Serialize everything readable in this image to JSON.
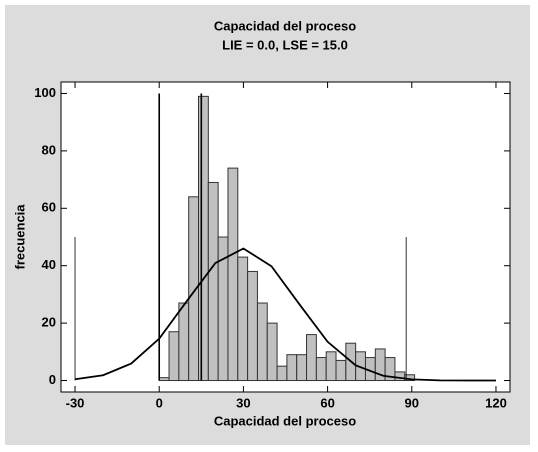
{
  "chart_data": {
    "type": "histogram",
    "title": "Capacidad del proceso",
    "subtitle": "LIE = 0.0, LSE = 15.0",
    "x_label": "Capacidad del proceso",
    "y_label": "frecuencia",
    "bins": [
      0,
      3.5,
      7,
      10.5,
      14,
      17.5,
      21,
      24.5,
      28,
      31.5,
      35,
      38.5,
      42,
      45.5,
      49,
      52.5,
      56,
      59.5,
      63,
      66.5,
      70,
      73.5,
      77,
      80.5,
      84,
      87.5,
      91
    ],
    "values": [
      1,
      17,
      27,
      64,
      99,
      69,
      50,
      74,
      43,
      38,
      27,
      20,
      5,
      9,
      9,
      16,
      8,
      10,
      7,
      13,
      10,
      8,
      11,
      8,
      3,
      2
    ],
    "color": "#c0c0c0",
    "curve": {
      "x": [
        -30,
        -20,
        -10,
        0,
        10,
        20,
        30,
        40,
        50,
        60,
        70,
        80,
        90,
        100,
        110,
        120
      ],
      "values": [
        0.43,
        1.84,
        5.9,
        14.6,
        27.9,
        40.9,
        46,
        39.8,
        26.5,
        13.5,
        5.3,
        1.6,
        0.4,
        0.06,
        0,
        0
      ]
    },
    "spec_lines": {
      "x": [
        0,
        15
      ],
      "values": [
        100,
        100
      ]
    },
    "sigma_lines": {
      "x": [
        -30,
        88
      ],
      "values": [
        50,
        50
      ]
    },
    "xlim": [
      -35,
      125
    ],
    "ylim": [
      -4,
      104
    ],
    "xticks": [
      -30,
      0,
      30,
      60,
      90,
      120
    ],
    "yticks": [
      0,
      20,
      40,
      60,
      80,
      100
    ]
  }
}
